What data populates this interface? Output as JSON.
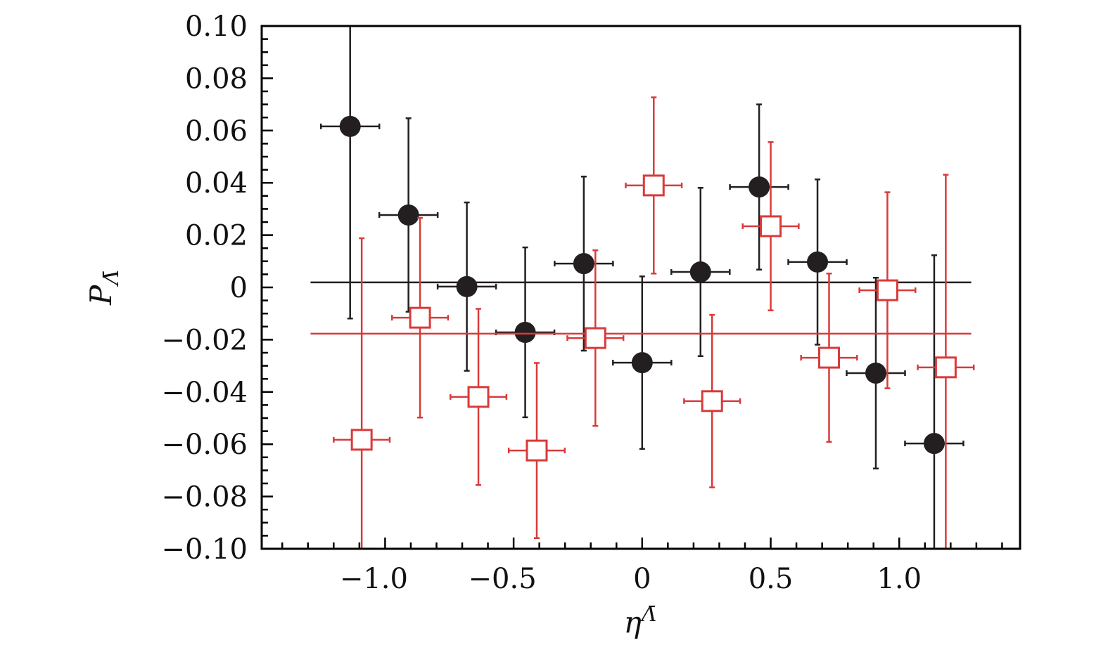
{
  "chart_data": {
    "type": "scatter",
    "title": "",
    "xlabel": "η^Λ̄",
    "xlabel_main": "η",
    "xlabel_sup": "Λ̄",
    "ylabel": "P_Λ̄",
    "ylabel_main": "P",
    "ylabel_sub": "Λ̄",
    "xlim": [
      -1.48,
      1.47
    ],
    "ylim": [
      -0.1,
      0.1
    ],
    "grid": false,
    "legend": "none",
    "x_ticks": [
      -1.0,
      -0.5,
      0,
      0.5,
      1.0
    ],
    "x_tick_labels": [
      "−1.0",
      "−0.5",
      "0",
      "0.5",
      "1.0"
    ],
    "x_minor_step": 0.1,
    "y_ticks": [
      0.1,
      0.08,
      0.06,
      0.04,
      0.02,
      0,
      -0.02,
      -0.04,
      -0.06,
      -0.08,
      -0.1
    ],
    "y_tick_labels": [
      "0.10",
      "0.08",
      "0.06",
      "0.04",
      "0.02",
      "0",
      "−0.02",
      "−0.04",
      "−0.06",
      "−0.08",
      "−0.10"
    ],
    "y_minor_step": 0.005,
    "series": [
      {
        "marker": "filled-circle",
        "color": "#231f20",
        "x": [
          -1.136,
          -0.909,
          -0.682,
          -0.455,
          -0.227,
          0.0,
          0.227,
          0.455,
          0.682,
          0.909,
          1.136
        ],
        "y": [
          0.0616,
          0.0277,
          0.0003,
          -0.0172,
          0.0091,
          -0.0288,
          0.0059,
          0.0384,
          0.0097,
          -0.0328,
          -0.0597
        ],
        "yerr": [
          0.0735,
          0.037,
          0.0322,
          0.0325,
          0.0333,
          0.033,
          0.0322,
          0.0316,
          0.0316,
          0.0365,
          0.072
        ],
        "xerr": 0.1136,
        "fit_line": {
          "y": 0.0019,
          "x_range": [
            -1.29,
            1.28
          ]
        }
      },
      {
        "marker": "open-square",
        "color": "#d93a3a",
        "x": [
          -1.091,
          -0.864,
          -0.637,
          -0.41,
          -0.182,
          0.045,
          0.272,
          0.5,
          0.727,
          0.954,
          1.181
        ],
        "y": [
          -0.0583,
          -0.0116,
          -0.0419,
          -0.0624,
          -0.0194,
          0.039,
          -0.0435,
          0.0234,
          -0.0269,
          -0.0011,
          -0.0306
        ],
        "yerr": [
          0.0771,
          0.0382,
          0.0337,
          0.0335,
          0.0336,
          0.0337,
          0.033,
          0.0322,
          0.0322,
          0.0375,
          0.0737
        ],
        "xerr": 0.109,
        "fit_line": {
          "y": -0.0177,
          "x_range": [
            -1.29,
            1.28
          ]
        }
      }
    ]
  }
}
